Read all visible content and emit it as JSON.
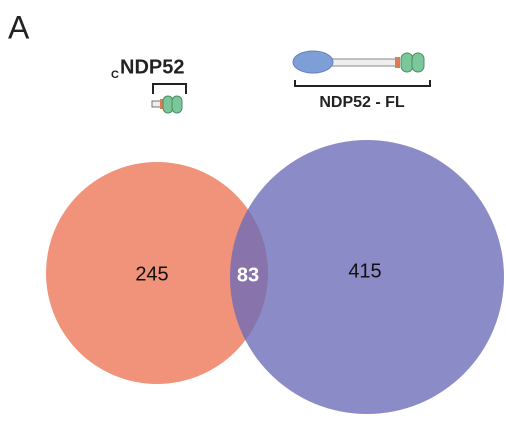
{
  "panel_label": "A",
  "sets": [
    {
      "label_sub": "C",
      "label": "NDP52",
      "count": "245"
    },
    {
      "label": "NDP52 - FL",
      "count": "415"
    }
  ],
  "intersection": {
    "count": "83"
  }
}
